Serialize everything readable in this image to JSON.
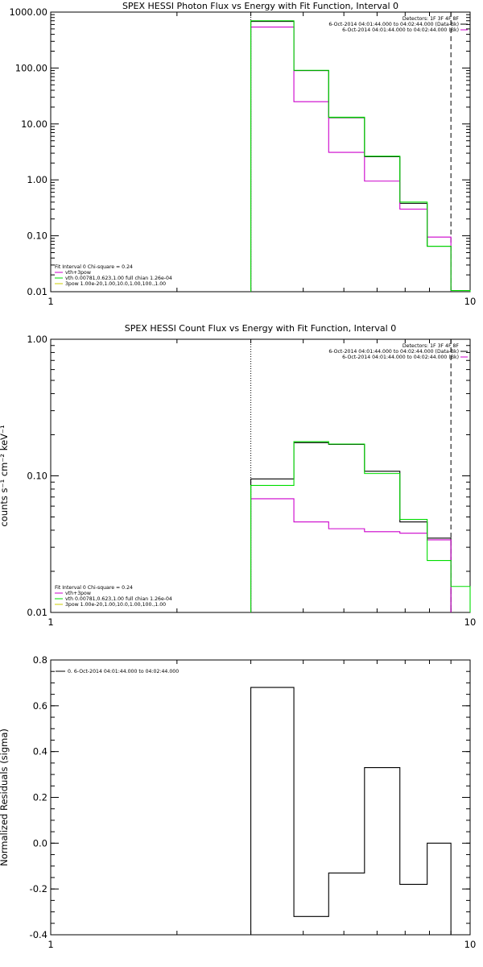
{
  "chart_data": [
    {
      "type": "line",
      "title": "SPEX HESSI Photon Flux vs Energy with Fit Function, Interval 0",
      "xscale": "log",
      "yscale": "log",
      "xlim": [
        1,
        10
      ],
      "ylim": [
        0.01,
        1000
      ],
      "xticks": [
        "1",
        "10"
      ],
      "yticks": [
        {
          "v": 1000,
          "t": "1000.00"
        },
        {
          "v": 100,
          "t": "100.00"
        },
        {
          "v": 10,
          "t": "10.00"
        },
        {
          "v": 1,
          "t": "1.00"
        },
        {
          "v": 0.1,
          "t": "0.10"
        },
        {
          "v": 0.01,
          "t": "0.01"
        }
      ],
      "ylabel": "",
      "vlines": [
        {
          "x": 3,
          "style": "dotted"
        },
        {
          "x": 9,
          "style": "dashed"
        }
      ],
      "legend_top": {
        "lines": [
          {
            "text": "Detectors: 1F 3F 4F 8F",
            "color": ""
          },
          {
            "text": "6-Oct-2014 04:01:44.000 to 04:02:44.000 (Data-Bk)",
            "color": "#000000"
          },
          {
            "text": "6-Oct-2014 04:01:44.000 to 04:02:44.000 (Bk)",
            "color": "#cc00cc"
          }
        ]
      },
      "legend_bottom": {
        "lines": [
          {
            "text": "Fit Interval 0   Chi-square = 0.24",
            "color": ""
          },
          {
            "text": "vth+3pow",
            "color": "#cc00cc"
          },
          {
            "text": "vth 0.00781,0.623,1.00   full chian 1.26e-04",
            "color": "#00dd00"
          },
          {
            "text": "3pow 1.00e-20,1.00,10.0,1.00,100.,1.00",
            "color": "#cccc00"
          }
        ]
      },
      "edges": [
        3,
        3.8,
        4.6,
        5.6,
        6.8,
        7.9,
        9,
        10
      ],
      "series": [
        {
          "name": "Data-Bk",
          "color": "#000000",
          "values": [
            680,
            90,
            13,
            2.6,
            0.38,
            0.065,
            null
          ]
        },
        {
          "name": "Bk",
          "color": "#cc00cc",
          "values": [
            540,
            25,
            3.1,
            0.95,
            0.3,
            0.095,
            null
          ]
        },
        {
          "name": "vth+3pow",
          "color": "#00dd00",
          "values": [
            700,
            91,
            13.2,
            2.65,
            0.4,
            0.065,
            0.0105
          ]
        }
      ]
    },
    {
      "type": "line",
      "title": "SPEX HESSI Count Flux vs Energy with Fit Function, Interval 0",
      "xscale": "log",
      "yscale": "log",
      "xlim": [
        1,
        10
      ],
      "ylim": [
        0.01,
        1
      ],
      "xticks": [
        "1",
        "10"
      ],
      "yticks": [
        {
          "v": 1,
          "t": "1.00"
        },
        {
          "v": 0.1,
          "t": "0.10"
        },
        {
          "v": 0.01,
          "t": "0.01"
        }
      ],
      "ylabel": "counts s⁻¹ cm⁻² keV⁻¹",
      "vlines": [
        {
          "x": 3,
          "style": "dotted"
        },
        {
          "x": 9,
          "style": "dashed"
        }
      ],
      "legend_top": {
        "lines": [
          {
            "text": "Detectors: 1F 3F 4F 8F",
            "color": ""
          },
          {
            "text": "6-Oct-2014 04:01:44.000 to 04:02:44.000 (Data-Bk)",
            "color": "#000000"
          },
          {
            "text": "6-Oct-2014 04:01:44.000 to 04:02:44.000 (Bk)",
            "color": "#cc00cc"
          }
        ]
      },
      "legend_bottom": {
        "lines": [
          {
            "text": "Fit Interval 0   Chi-square = 0.24",
            "color": ""
          },
          {
            "text": "vth+3pow",
            "color": "#cc00cc"
          },
          {
            "text": "vth 0.00781,0.623,1.00   full chian 1.26e-04",
            "color": "#00dd00"
          },
          {
            "text": "3pow 1.00e-20,1.00,10.0,1.00,100.,1.00",
            "color": "#cccc00"
          }
        ]
      },
      "edges": [
        3,
        3.8,
        4.6,
        5.6,
        6.8,
        7.9,
        9,
        10
      ],
      "series": [
        {
          "name": "Data-Bk",
          "color": "#000000",
          "values": [
            0.095,
            0.175,
            0.17,
            0.108,
            0.046,
            0.035,
            null
          ]
        },
        {
          "name": "Bk",
          "color": "#cc00cc",
          "values": [
            0.068,
            0.046,
            0.041,
            0.039,
            0.038,
            0.034,
            null
          ]
        },
        {
          "name": "vth+3pow",
          "color": "#00dd00",
          "values": [
            0.085,
            0.178,
            0.171,
            0.104,
            0.048,
            0.024,
            0.0155
          ]
        }
      ]
    },
    {
      "type": "line",
      "title": "",
      "xscale": "log",
      "yscale": "linear",
      "xlim": [
        1,
        10
      ],
      "ylim": [
        -0.4,
        0.8
      ],
      "xticks": [
        "1",
        "10"
      ],
      "yticks": [
        {
          "v": 0.8,
          "t": "0.8"
        },
        {
          "v": 0.6,
          "t": "0.6"
        },
        {
          "v": 0.4,
          "t": "0.4"
        },
        {
          "v": 0.2,
          "t": "0.2"
        },
        {
          "v": 0.0,
          "t": "0.0"
        },
        {
          "v": -0.2,
          "t": "-0.2"
        },
        {
          "v": -0.4,
          "t": "-0.4"
        }
      ],
      "ylabel": "Normalized Residuals (sigma)",
      "legend_top_left": {
        "text": "0.  6-Oct-2014 04:01:44.000 to 04:02:44.000",
        "color": "#000000"
      },
      "edges": [
        3,
        3.8,
        4.6,
        5.6,
        6.8,
        7.9,
        9
      ],
      "series": [
        {
          "name": "residuals",
          "color": "#000000",
          "values": [
            0.68,
            -0.32,
            -0.13,
            0.33,
            -0.18,
            0.0
          ]
        }
      ]
    }
  ]
}
